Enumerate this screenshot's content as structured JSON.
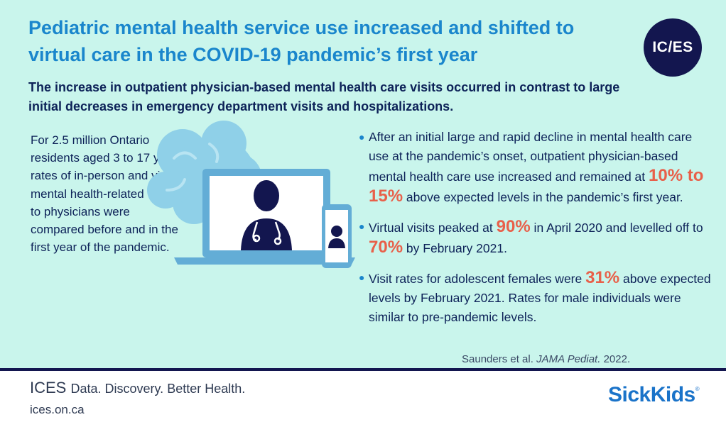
{
  "title": "Pediatric mental health service use increased and shifted to virtual care in the COVID-19 pandemic’s first year",
  "subtitle": "The increase in outpatient physician-based mental health care visits occurred in contrast to large initial decreases in emergency department visits and hospitalizations.",
  "logo_text": "IC/ES",
  "intro": "For 2.5 million Ontario residents aged 3 to 17 years, rates of in-person and virtual mental health-related visits to physicians were compared before and in the first year of the pandemic.",
  "bullets": [
    {
      "before": "After an initial large and rapid decline in mental health care use at the pandemic’s onset, outpatient physician-based mental health care use increased and remained at ",
      "highlight": "10% to 15%",
      "after": " above expected levels in the pandemic’s first year."
    },
    {
      "before": "Virtual visits peaked at ",
      "highlight": "90%",
      "middle": " in April 2020 and levelled off to ",
      "highlight2": "70%",
      "after": " by February 2021."
    },
    {
      "before": "Visit rates for adolescent females were ",
      "highlight": "31%",
      "after": " above expected levels by February 2021. Rates for male individuals were similar to pre-pandemic levels."
    }
  ],
  "citation": {
    "authors": "Saunders et al. ",
    "journal": "JAMA Pediat.",
    "year": " 2022."
  },
  "footer": {
    "brand": "ICES",
    "tagline": "Data. Discovery. Better Health.",
    "url": "ices.on.ca",
    "partner": "SickKids",
    "partner_mark": "®"
  },
  "colors": {
    "background": "#c9f5ec",
    "title": "#1a86cc",
    "text": "#0d2258",
    "highlight": "#e8604a",
    "navy": "#13164f",
    "brain": "#8fd0e8",
    "device": "#63add6"
  },
  "icons": [
    "brain-icon",
    "laptop-icon",
    "doctor-icon",
    "stethoscope-icon",
    "phone-icon",
    "patient-icon"
  ]
}
